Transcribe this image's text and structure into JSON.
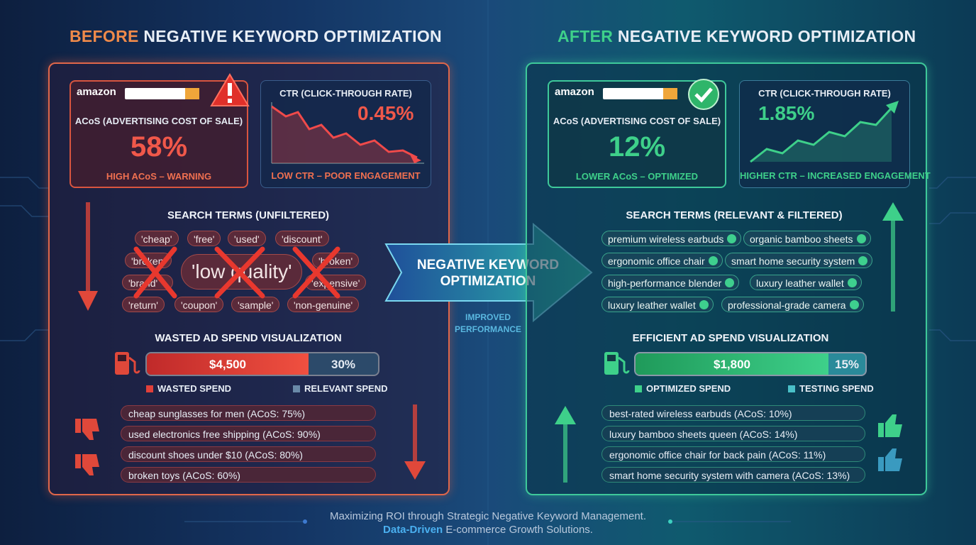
{
  "before": {
    "heading_accent": "BEFORE",
    "heading_rest": "NEGATIVE KEYWORD OPTIMIZATION",
    "acos": {
      "brand": "amazon",
      "label": "ACoS (ADVERTISING COST OF SALE)",
      "value": "58%",
      "note": "HIGH ACoS – WARNING"
    },
    "ctr": {
      "label": "CTR (CLICK-THROUGH RATE)",
      "value": "0.45%",
      "note": "LOW CTR – POOR ENGAGEMENT"
    },
    "search_terms": {
      "title": "SEARCH TERMS (UNFILTERED)",
      "tags": [
        "'cheap'",
        "'free'",
        "'used'",
        "'discount'",
        "'broken'",
        "'low quality'",
        "'broken'",
        "'brand'",
        "'expensive'",
        "'return'",
        "'coupon'",
        "'sample'",
        "'non-genuine'"
      ]
    },
    "spend": {
      "title": "WASTED AD SPEND VISUALIZATION",
      "main": "$4,500",
      "side": "30%",
      "legend": [
        "WASTED SPEND",
        "RELEVANT SPEND"
      ]
    },
    "keywords": [
      "cheap sunglasses for men (ACoS: 75%)",
      "used electronics free shipping (ACoS: 90%)",
      "discount shoes under $10 (ACoS: 80%)",
      "broken toys (ACoS: 60%)"
    ]
  },
  "center": {
    "label": "NEGATIVE KEYWORD OPTIMIZATION",
    "sub": "IMPROVED PERFORMANCE"
  },
  "after": {
    "heading_accent": "AFTER",
    "heading_rest": "NEGATIVE KEYWORD OPTIMIZATION",
    "acos": {
      "brand": "amazon",
      "label": "ACoS (ADVERTISING COST OF SALE)",
      "value": "12%",
      "note": "LOWER ACoS – OPTIMIZED"
    },
    "ctr": {
      "label": "CTR (CLICK-THROUGH RATE)",
      "value": "1.85%",
      "note": "HIGHER CTR – INCREASED ENGAGEMENT"
    },
    "search_terms": {
      "title": "SEARCH TERMS (RELEVANT & FILTERED)",
      "tags": [
        "premium wireless earbuds",
        "organic bamboo sheets",
        "ergonomic office chair",
        "smart home security system",
        "high-performance blender",
        "luxury leather wallet",
        "luxury leather wallet",
        "professional-grade camera"
      ]
    },
    "spend": {
      "title": "EFFICIENT AD SPEND VISUALIZATION",
      "main": "$1,800",
      "side": "15%",
      "legend": [
        "OPTIMIZED SPEND",
        "TESTING SPEND"
      ]
    },
    "keywords": [
      "best-rated wireless earbuds (ACoS: 10%)",
      "luxury bamboo sheets queen (ACoS: 14%)",
      "ergonomic office chair for back pain (ACoS: 11%)",
      "smart home security system with camera (ACoS: 13%)"
    ]
  },
  "footer": {
    "line1": "Maximizing ROI through Strategic Negative Keyword Management.",
    "line2_bold": "Data-Driven",
    "line2_rest": "E-commerce Growth Solutions."
  }
}
